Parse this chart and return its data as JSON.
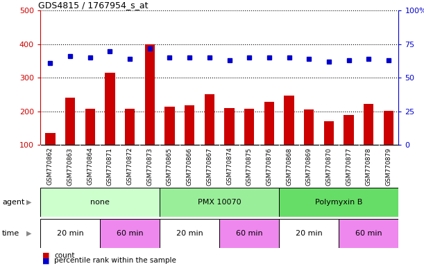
{
  "title": "GDS4815 / 1767954_s_at",
  "samples": [
    "GSM770862",
    "GSM770863",
    "GSM770864",
    "GSM770871",
    "GSM770872",
    "GSM770873",
    "GSM770865",
    "GSM770866",
    "GSM770867",
    "GSM770874",
    "GSM770875",
    "GSM770876",
    "GSM770868",
    "GSM770869",
    "GSM770870",
    "GSM770877",
    "GSM770878",
    "GSM770879"
  ],
  "counts": [
    135,
    240,
    208,
    315,
    208,
    400,
    213,
    218,
    252,
    210,
    207,
    228,
    248,
    205,
    170,
    190,
    222,
    202
  ],
  "percentile_ranks": [
    61,
    66,
    65,
    70,
    64,
    72,
    65,
    65,
    65,
    63,
    65,
    65,
    65,
    64,
    62,
    63,
    64,
    63
  ],
  "bar_color": "#cc0000",
  "dot_color": "#0000cc",
  "left_ylim": [
    100,
    500
  ],
  "left_yticks": [
    100,
    200,
    300,
    400,
    500
  ],
  "right_ylim": [
    0,
    100
  ],
  "right_yticks": [
    0,
    25,
    50,
    75,
    100
  ],
  "right_yticklabels": [
    "0",
    "25",
    "50",
    "75",
    "100%"
  ],
  "agent_groups": [
    {
      "label": "none",
      "start": 0,
      "end": 6,
      "color": "#ccffcc"
    },
    {
      "label": "PMX 10070",
      "start": 6,
      "end": 12,
      "color": "#99ee99"
    },
    {
      "label": "Polymyxin B",
      "start": 12,
      "end": 18,
      "color": "#66dd66"
    }
  ],
  "time_groups": [
    {
      "label": "20 min",
      "start": 0,
      "end": 3,
      "color": "#ffffff"
    },
    {
      "label": "60 min",
      "start": 3,
      "end": 6,
      "color": "#ee88ee"
    },
    {
      "label": "20 min",
      "start": 6,
      "end": 9,
      "color": "#ffffff"
    },
    {
      "label": "60 min",
      "start": 9,
      "end": 12,
      "color": "#ee88ee"
    },
    {
      "label": "20 min",
      "start": 12,
      "end": 15,
      "color": "#ffffff"
    },
    {
      "label": "60 min",
      "start": 15,
      "end": 18,
      "color": "#ee88ee"
    }
  ],
  "legend_count_label": "count",
  "legend_pct_label": "percentile rank within the sample",
  "agent_label": "agent",
  "time_label": "time",
  "bg_color": "#ffffff",
  "xtick_bg_color": "#cccccc",
  "grid_color": "#000000",
  "agent_arrow_color": "#888888",
  "time_arrow_color": "#888888"
}
